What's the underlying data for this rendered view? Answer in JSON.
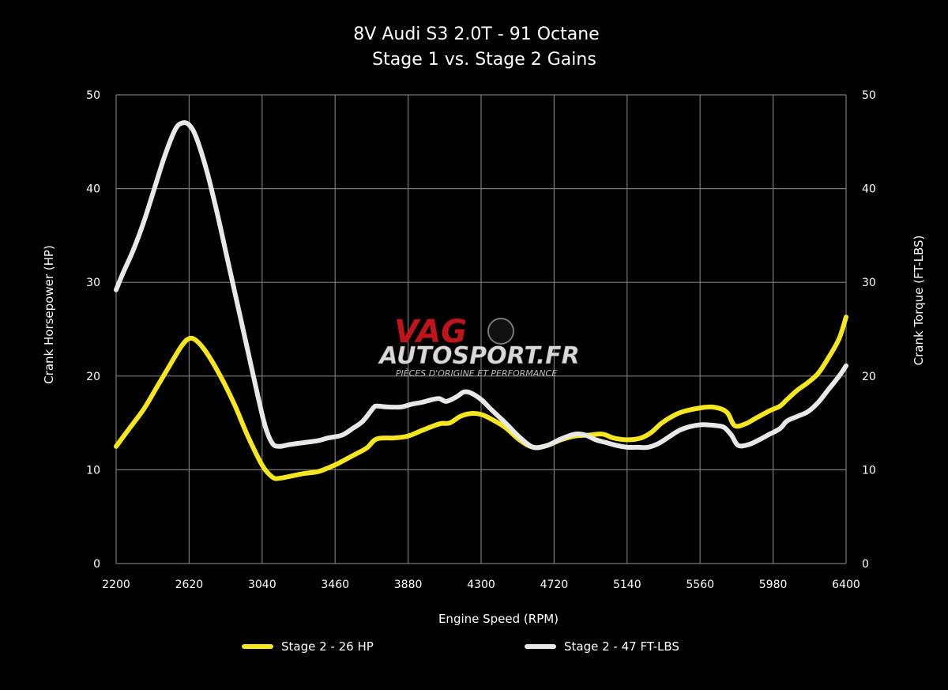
{
  "chart_data": {
    "type": "line",
    "title": "8V Audi S3 2.0T - 91 Octane",
    "subtitle": "Stage 1 vs. Stage 2 Gains",
    "xlabel": "Engine Speed (RPM)",
    "ylabel_left": "Crank Horsepower (HP)",
    "ylabel_right": "Crank Torque (FT-LBS)",
    "xlim": [
      2200,
      6400
    ],
    "ylim": [
      0,
      50
    ],
    "xticks": [
      2200,
      2620,
      3040,
      3460,
      3880,
      4300,
      4720,
      5140,
      5560,
      5980,
      6400
    ],
    "yticks": [
      0,
      10,
      20,
      30,
      40,
      50
    ],
    "grid": true,
    "legend_position": "bottom",
    "series": [
      {
        "name": "Stage 2 - 26 HP",
        "color": "#f5e61e",
        "x": [
          2200,
          2280,
          2360,
          2440,
          2520,
          2580,
          2620,
          2660,
          2720,
          2800,
          2880,
          2960,
          3040,
          3100,
          3140,
          3200,
          3280,
          3360,
          3420,
          3480,
          3560,
          3640,
          3700,
          3800,
          3880,
          3960,
          4060,
          4120,
          4180,
          4240,
          4300,
          4360,
          4440,
          4520,
          4600,
          4680,
          4760,
          4840,
          4920,
          5000,
          5060,
          5140,
          5220,
          5280,
          5340,
          5420,
          5480,
          5560,
          5620,
          5680,
          5720,
          5760,
          5820,
          5880,
          5960,
          6020,
          6060,
          6120,
          6180,
          6240,
          6300,
          6360,
          6400
        ],
        "values": [
          12.5,
          14.5,
          16.5,
          19.0,
          21.5,
          23.3,
          24.0,
          23.8,
          22.5,
          20.0,
          17.0,
          13.5,
          10.5,
          9.2,
          9.1,
          9.3,
          9.6,
          9.8,
          10.2,
          10.7,
          11.5,
          12.3,
          13.3,
          13.4,
          13.6,
          14.2,
          14.9,
          15.0,
          15.7,
          16.0,
          15.9,
          15.4,
          14.5,
          13.2,
          12.4,
          12.6,
          13.2,
          13.6,
          13.7,
          13.8,
          13.4,
          13.2,
          13.4,
          14.0,
          15.0,
          15.9,
          16.3,
          16.6,
          16.7,
          16.5,
          16.0,
          14.7,
          14.9,
          15.5,
          16.3,
          16.8,
          17.5,
          18.5,
          19.3,
          20.3,
          22.0,
          24.0,
          26.3
        ]
      },
      {
        "name": "Stage 2 - 47 FT-LBS",
        "color": "#e8e8e8",
        "x": [
          2200,
          2240,
          2300,
          2360,
          2420,
          2480,
          2540,
          2580,
          2620,
          2660,
          2720,
          2780,
          2840,
          2900,
          2960,
          3020,
          3060,
          3100,
          3140,
          3200,
          3280,
          3360,
          3420,
          3500,
          3560,
          3620,
          3680,
          3700,
          3760,
          3840,
          3900,
          3960,
          4020,
          4060,
          4100,
          4160,
          4200,
          4240,
          4300,
          4360,
          4440,
          4520,
          4600,
          4680,
          4760,
          4840,
          4900,
          4960,
          5020,
          5080,
          5140,
          5200,
          5260,
          5320,
          5380,
          5440,
          5500,
          5560,
          5600,
          5660,
          5700,
          5740,
          5780,
          5840,
          5900,
          5960,
          6020,
          6060,
          6120,
          6180,
          6240,
          6300,
          6360,
          6400
        ],
        "values": [
          29.2,
          31.0,
          33.5,
          36.5,
          40.0,
          43.5,
          46.3,
          47.0,
          46.8,
          45.5,
          42.0,
          37.5,
          32.5,
          27.5,
          22.5,
          17.5,
          14.5,
          12.8,
          12.5,
          12.7,
          12.9,
          13.1,
          13.4,
          13.7,
          14.4,
          15.2,
          16.6,
          16.8,
          16.7,
          16.7,
          17.0,
          17.2,
          17.5,
          17.6,
          17.3,
          17.8,
          18.3,
          18.2,
          17.5,
          16.4,
          15.0,
          13.5,
          12.4,
          12.6,
          13.3,
          13.8,
          13.7,
          13.2,
          12.9,
          12.6,
          12.4,
          12.4,
          12.4,
          12.8,
          13.5,
          14.2,
          14.6,
          14.8,
          14.8,
          14.7,
          14.5,
          13.7,
          12.6,
          12.7,
          13.2,
          13.8,
          14.4,
          15.2,
          15.7,
          16.2,
          17.2,
          18.6,
          20.0,
          21.1
        ]
      }
    ]
  },
  "watermark": {
    "brand_top": "VAG",
    "brand_main": "AUTOSPORT.FR",
    "tagline": "PIÈCES D'ORIGINE ET PERFORMANCE"
  }
}
